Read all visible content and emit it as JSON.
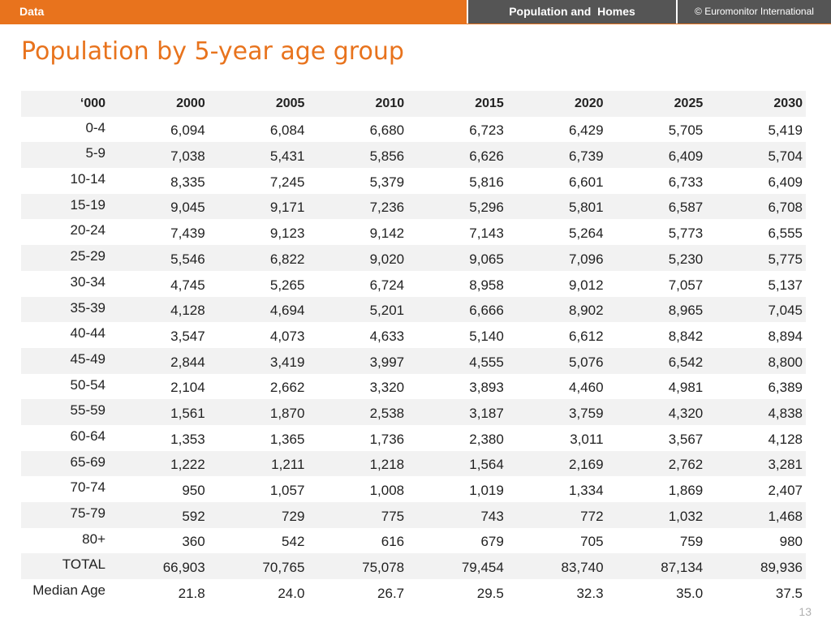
{
  "header": {
    "section": "Data",
    "topic": "Population and  Homes",
    "copyright": "© Euromonitor International"
  },
  "title": "Population by 5-year age group",
  "table": {
    "columns": [
      "‘000",
      "2000",
      "2005",
      "2010",
      "2015",
      "2020",
      "2025",
      "2030"
    ],
    "rows": [
      {
        "label": "0-4",
        "values": [
          "6,094",
          "6,084",
          "6,680",
          "6,723",
          "6,429",
          "5,705",
          "5,419"
        ]
      },
      {
        "label": "5-9",
        "values": [
          "7,038",
          "5,431",
          "5,856",
          "6,626",
          "6,739",
          "6,409",
          "5,704"
        ]
      },
      {
        "label": "10-14",
        "values": [
          "8,335",
          "7,245",
          "5,379",
          "5,816",
          "6,601",
          "6,733",
          "6,409"
        ]
      },
      {
        "label": "15-19",
        "values": [
          "9,045",
          "9,171",
          "7,236",
          "5,296",
          "5,801",
          "6,587",
          "6,708"
        ]
      },
      {
        "label": "20-24",
        "values": [
          "7,439",
          "9,123",
          "9,142",
          "7,143",
          "5,264",
          "5,773",
          "6,555"
        ]
      },
      {
        "label": "25-29",
        "values": [
          "5,546",
          "6,822",
          "9,020",
          "9,065",
          "7,096",
          "5,230",
          "5,775"
        ]
      },
      {
        "label": "30-34",
        "values": [
          "4,745",
          "5,265",
          "6,724",
          "8,958",
          "9,012",
          "7,057",
          "5,137"
        ]
      },
      {
        "label": "35-39",
        "values": [
          "4,128",
          "4,694",
          "5,201",
          "6,666",
          "8,902",
          "8,965",
          "7,045"
        ]
      },
      {
        "label": "40-44",
        "values": [
          "3,547",
          "4,073",
          "4,633",
          "5,140",
          "6,612",
          "8,842",
          "8,894"
        ]
      },
      {
        "label": "45-49",
        "values": [
          "2,844",
          "3,419",
          "3,997",
          "4,555",
          "5,076",
          "6,542",
          "8,800"
        ]
      },
      {
        "label": "50-54",
        "values": [
          "2,104",
          "2,662",
          "3,320",
          "3,893",
          "4,460",
          "4,981",
          "6,389"
        ]
      },
      {
        "label": "55-59",
        "values": [
          "1,561",
          "1,870",
          "2,538",
          "3,187",
          "3,759",
          "4,320",
          "4,838"
        ]
      },
      {
        "label": "60-64",
        "values": [
          "1,353",
          "1,365",
          "1,736",
          "2,380",
          "3,011",
          "3,567",
          "4,128"
        ]
      },
      {
        "label": "65-69",
        "values": [
          "1,222",
          "1,211",
          "1,218",
          "1,564",
          "2,169",
          "2,762",
          "3,281"
        ]
      },
      {
        "label": "70-74",
        "values": [
          "950",
          "1,057",
          "1,008",
          "1,019",
          "1,334",
          "1,869",
          "2,407"
        ]
      },
      {
        "label": "75-79",
        "values": [
          "592",
          "729",
          "775",
          "743",
          "772",
          "1,032",
          "1,468"
        ]
      },
      {
        "label": "80+",
        "values": [
          "360",
          "542",
          "616",
          "679",
          "705",
          "759",
          "980"
        ]
      },
      {
        "label": "TOTAL",
        "values": [
          "66,903",
          "70,765",
          "75,078",
          "79,454",
          "83,740",
          "87,134",
          "89,936"
        ]
      },
      {
        "label": "Median Age",
        "values": [
          "21.8",
          "24.0",
          "26.7",
          "29.5",
          "32.3",
          "35.0",
          "37.5"
        ]
      }
    ]
  },
  "page_number": "13",
  "colors": {
    "accent": "#e8731d",
    "header_dark": "#555555",
    "row_stripe": "#f2f2f2",
    "page_number": "#b0b0b0"
  }
}
